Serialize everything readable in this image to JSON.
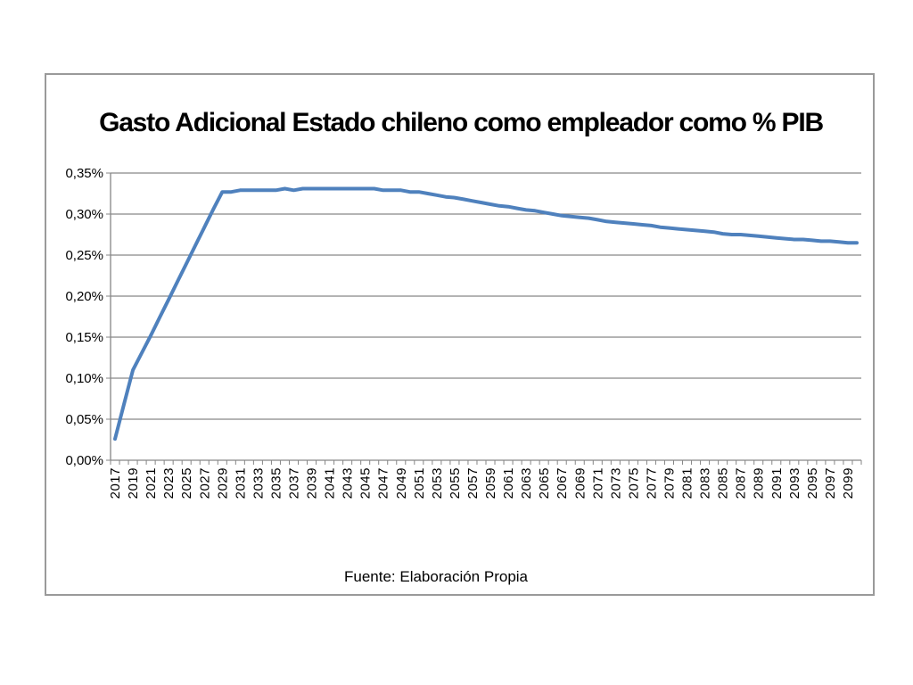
{
  "chart_data": {
    "type": "line",
    "title": "Gasto Adicional Estado chileno como % PIB",
    "title_display": "Gasto Adicional Estado chileno como empleador como % PIB",
    "xlabel": "",
    "ylabel": "",
    "note": "Fuente: Elaboración Propia",
    "ylim": [
      0,
      0.35
    ],
    "grid": true,
    "legend": "none",
    "series_color": "#4f81bd",
    "y_ticks": [
      0,
      0.05,
      0.1,
      0.15,
      0.2,
      0.25,
      0.3,
      0.35
    ],
    "y_tick_labels": [
      "0,00%",
      "0,05%",
      "0,10%",
      "0,15%",
      "0,20%",
      "0,25%",
      "0,30%",
      "0,35%"
    ],
    "x": [
      2017,
      2018,
      2019,
      2020,
      2021,
      2022,
      2023,
      2024,
      2025,
      2026,
      2027,
      2028,
      2029,
      2030,
      2031,
      2032,
      2033,
      2034,
      2035,
      2036,
      2037,
      2038,
      2039,
      2040,
      2041,
      2042,
      2043,
      2044,
      2045,
      2046,
      2047,
      2048,
      2049,
      2050,
      2051,
      2052,
      2053,
      2054,
      2055,
      2056,
      2057,
      2058,
      2059,
      2060,
      2061,
      2062,
      2063,
      2064,
      2065,
      2066,
      2067,
      2068,
      2069,
      2070,
      2071,
      2072,
      2073,
      2074,
      2075,
      2076,
      2077,
      2078,
      2079,
      2080,
      2081,
      2082,
      2083,
      2084,
      2085,
      2086,
      2087,
      2088,
      2089,
      2090,
      2091,
      2092,
      2093,
      2094,
      2095,
      2096,
      2097,
      2098,
      2099,
      2100
    ],
    "x_tick_labels": [
      "2017",
      "2019",
      "2021",
      "2023",
      "2025",
      "2027",
      "2029",
      "2031",
      "2033",
      "2035",
      "2037",
      "2039",
      "2041",
      "2043",
      "2045",
      "2047",
      "2049",
      "2051",
      "2053",
      "2055",
      "2057",
      "2059",
      "2061",
      "2063",
      "2065",
      "2067",
      "2069",
      "2071",
      "2073",
      "2075",
      "2077",
      "2079",
      "2081",
      "2083",
      "2085",
      "2087",
      "2089",
      "2091",
      "2093",
      "2095",
      "2097",
      "2099"
    ],
    "series": [
      {
        "values": [
          0.026,
          0.068,
          0.11,
          0.131,
          0.152,
          0.174,
          0.196,
          0.218,
          0.24,
          0.262,
          0.284,
          0.306,
          0.327,
          0.327,
          0.329,
          0.329,
          0.329,
          0.329,
          0.329,
          0.331,
          0.329,
          0.331,
          0.331,
          0.331,
          0.331,
          0.331,
          0.331,
          0.331,
          0.331,
          0.331,
          0.329,
          0.329,
          0.329,
          0.327,
          0.327,
          0.325,
          0.323,
          0.321,
          0.32,
          0.318,
          0.316,
          0.314,
          0.312,
          0.31,
          0.309,
          0.307,
          0.305,
          0.304,
          0.302,
          0.3,
          0.298,
          0.297,
          0.296,
          0.295,
          0.293,
          0.291,
          0.29,
          0.289,
          0.288,
          0.287,
          0.286,
          0.284,
          0.283,
          0.282,
          0.281,
          0.28,
          0.279,
          0.278,
          0.276,
          0.275,
          0.275,
          0.274,
          0.273,
          0.272,
          0.271,
          0.27,
          0.269,
          0.269,
          0.268,
          0.267,
          0.267,
          0.266,
          0.265,
          0.265
        ]
      }
    ]
  }
}
